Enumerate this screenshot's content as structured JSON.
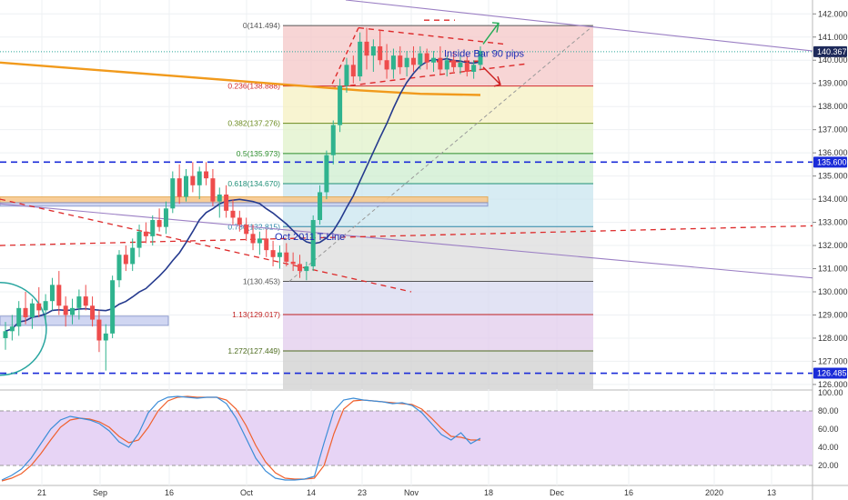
{
  "chart_data": {
    "type": "candlestick",
    "price_axis": {
      "ylim": [
        125.8,
        142.6
      ],
      "ticks": [
        126.0,
        127.0,
        128.0,
        129.0,
        130.0,
        131.0,
        132.0,
        133.0,
        134.0,
        135.0,
        136.0,
        137.0,
        138.0,
        139.0,
        140.0,
        141.0,
        142.0
      ],
      "tick_labels": [
        "126.000",
        "127.000",
        "128.000",
        "129.000",
        "130.000",
        "131.000",
        "132.000",
        "133.000",
        "134.000",
        "135.000",
        "136.000",
        "137.000",
        "138.000",
        "139.000",
        "140.000",
        "141.000",
        "142.000"
      ],
      "badges": [
        {
          "value": 140.367,
          "label": "140.367",
          "color": "#1e2a5a"
        },
        {
          "value": 135.6,
          "label": "135.600",
          "color": "#1a2bd8"
        },
        {
          "value": 126.485,
          "label": "126.485",
          "color": "#1a2bd8"
        }
      ]
    },
    "time_axis": {
      "labels": [
        "21",
        "Sep",
        "16",
        "Oct",
        "14",
        "23",
        "Nov",
        "18",
        "Dec",
        "16",
        "2020",
        "13"
      ]
    },
    "candles": [
      [
        128.0,
        128.7,
        127.5,
        128.3
      ],
      [
        128.3,
        129.0,
        127.9,
        128.5
      ],
      [
        128.5,
        129.6,
        128.1,
        129.3
      ],
      [
        129.3,
        130.0,
        128.6,
        128.9
      ],
      [
        128.9,
        129.7,
        128.4,
        129.5
      ],
      [
        129.5,
        130.2,
        128.9,
        129.2
      ],
      [
        129.2,
        129.9,
        128.6,
        129.6
      ],
      [
        129.6,
        130.6,
        129.2,
        130.3
      ],
      [
        130.3,
        130.9,
        129.0,
        129.4
      ],
      [
        129.4,
        129.8,
        128.5,
        129.0
      ],
      [
        129.0,
        129.7,
        128.6,
        129.3
      ],
      [
        129.3,
        130.1,
        128.8,
        129.8
      ],
      [
        129.8,
        130.3,
        129.2,
        129.4
      ],
      [
        129.4,
        129.8,
        128.5,
        128.8
      ],
      [
        128.8,
        129.2,
        127.4,
        127.9
      ],
      [
        127.9,
        128.6,
        126.6,
        128.2
      ],
      [
        128.2,
        130.7,
        128.0,
        130.5
      ],
      [
        130.5,
        131.8,
        130.2,
        131.6
      ],
      [
        131.6,
        132.0,
        130.9,
        131.2
      ],
      [
        131.2,
        132.3,
        130.9,
        131.9
      ],
      [
        131.9,
        132.9,
        131.5,
        132.6
      ],
      [
        132.6,
        133.0,
        132.1,
        132.4
      ],
      [
        132.4,
        133.3,
        132.0,
        133.1
      ],
      [
        133.1,
        133.6,
        132.6,
        132.8
      ],
      [
        132.8,
        133.9,
        132.5,
        133.6
      ],
      [
        133.6,
        135.2,
        133.4,
        134.9
      ],
      [
        134.9,
        135.5,
        133.8,
        134.1
      ],
      [
        134.1,
        135.3,
        133.9,
        135.0
      ],
      [
        135.0,
        135.6,
        134.3,
        134.6
      ],
      [
        134.6,
        135.4,
        134.0,
        135.2
      ],
      [
        135.2,
        135.6,
        134.6,
        134.9
      ],
      [
        134.9,
        135.3,
        133.7,
        133.9
      ],
      [
        133.9,
        134.5,
        133.2,
        134.2
      ],
      [
        134.2,
        134.6,
        133.2,
        133.5
      ],
      [
        133.5,
        134.0,
        132.9,
        133.2
      ],
      [
        133.2,
        133.5,
        132.6,
        132.9
      ],
      [
        132.9,
        133.2,
        132.2,
        132.5
      ],
      [
        132.5,
        132.9,
        131.8,
        132.1
      ],
      [
        132.1,
        132.6,
        131.6,
        132.3
      ],
      [
        132.3,
        132.7,
        131.5,
        131.8
      ],
      [
        131.8,
        132.2,
        131.1,
        131.5
      ],
      [
        131.5,
        132.0,
        131.0,
        131.7
      ],
      [
        131.7,
        132.1,
        131.1,
        131.3
      ],
      [
        131.3,
        131.7,
        130.9,
        131.2
      ],
      [
        131.2,
        131.6,
        130.6,
        130.9
      ],
      [
        130.9,
        131.3,
        130.5,
        131.1
      ],
      [
        131.1,
        133.3,
        130.9,
        133.1
      ],
      [
        133.1,
        134.6,
        132.9,
        134.3
      ],
      [
        134.3,
        136.1,
        134.0,
        135.9
      ],
      [
        135.9,
        137.4,
        135.5,
        137.2
      ],
      [
        137.2,
        139.2,
        136.9,
        138.9
      ],
      [
        138.9,
        140.1,
        138.6,
        139.8
      ],
      [
        139.8,
        140.2,
        139.0,
        139.3
      ],
      [
        139.3,
        141.2,
        139.1,
        140.8
      ],
      [
        140.8,
        141.4,
        139.6,
        140.2
      ],
      [
        140.2,
        140.9,
        139.5,
        140.6
      ],
      [
        140.6,
        141.3,
        139.8,
        140.0
      ],
      [
        140.0,
        140.7,
        139.2,
        139.6
      ],
      [
        139.6,
        140.5,
        139.2,
        140.2
      ],
      [
        140.2,
        140.6,
        139.4,
        139.7
      ],
      [
        139.7,
        140.4,
        139.3,
        140.1
      ],
      [
        140.1,
        140.6,
        139.5,
        139.8
      ],
      [
        139.8,
        140.6,
        139.6,
        140.3
      ],
      [
        140.3,
        140.5,
        139.6,
        139.9
      ],
      [
        139.9,
        140.4,
        139.5,
        140.1
      ],
      [
        140.1,
        140.6,
        139.4,
        139.6
      ],
      [
        139.6,
        140.2,
        139.3,
        140.0
      ],
      [
        140.0,
        140.4,
        139.5,
        139.7
      ],
      [
        139.7,
        140.3,
        139.4,
        139.9
      ],
      [
        139.9,
        140.2,
        139.3,
        139.5
      ],
      [
        139.5,
        140.0,
        139.2,
        139.8
      ],
      [
        139.8,
        140.6,
        139.6,
        140.4
      ]
    ],
    "moving_average_orange": [
      139.9,
      139.7,
      139.5,
      139.3,
      139.1,
      138.9,
      138.7,
      138.55,
      138.5
    ],
    "fib_levels": [
      {
        "label": "0(141.494)",
        "value": 141.494,
        "color": "#555555",
        "fill": "#f4c7c7"
      },
      {
        "label": "0.236(138.888)",
        "value": 138.888,
        "color": "#d12b2b",
        "fill": "#f6f0c2"
      },
      {
        "label": "0.382(137.276)",
        "value": 137.276,
        "color": "#6a8a1e",
        "fill": "#e0f1c9"
      },
      {
        "label": "0.5(135.973)",
        "value": 135.973,
        "color": "#2e8f2e",
        "fill": "#cdeecf"
      },
      {
        "label": "0.618(134.670)",
        "value": 134.67,
        "color": "#1f8f77",
        "fill": "#c9e6ef"
      },
      {
        "label": "0.786(132.815)",
        "value": 132.815,
        "color": "#2b86a8",
        "fill": "#dcdcdc"
      },
      {
        "label": "1(130.453)",
        "value": 130.453,
        "color": "#555555",
        "fill": "#d8daf0"
      },
      {
        "label": "1.13(129.017)",
        "value": 129.017,
        "color": "#c02020",
        "fill": "#e2ccec"
      },
      {
        "label": "1.272(127.449)",
        "value": 127.449,
        "color": "#4d6b1e",
        "fill": "#cfcfcf"
      }
    ],
    "annotations": [
      {
        "text": "Inside Bar 90 pips",
        "value": 140.3
      },
      {
        "text": "Oct 2011 T-Line",
        "value": 132.4
      }
    ],
    "oscillator": {
      "ticks": [
        20.0,
        40.0,
        60.0,
        80.0,
        100.0
      ],
      "tick_labels": [
        "20.00",
        "40.00",
        "60.00",
        "80.00",
        "100.00"
      ],
      "overbought": 80,
      "oversold": 20,
      "k": [
        4,
        9,
        16,
        28,
        44,
        60,
        70,
        74,
        72,
        70,
        66,
        58,
        46,
        40,
        55,
        78,
        90,
        95,
        96,
        95,
        94,
        95,
        95,
        88,
        72,
        50,
        28,
        14,
        6,
        4,
        4,
        5,
        8,
        45,
        80,
        92,
        94,
        92,
        91,
        90,
        88,
        89,
        86,
        78,
        66,
        54,
        48,
        56,
        44,
        50
      ],
      "d": [
        3,
        6,
        11,
        20,
        33,
        48,
        62,
        70,
        72,
        71,
        68,
        62,
        52,
        45,
        48,
        62,
        80,
        91,
        95,
        96,
        95,
        95,
        95,
        92,
        82,
        64,
        42,
        24,
        12,
        6,
        5,
        5,
        6,
        20,
        55,
        82,
        91,
        92,
        91,
        90,
        89,
        88,
        87,
        82,
        72,
        61,
        52,
        51,
        48,
        48
      ]
    }
  }
}
